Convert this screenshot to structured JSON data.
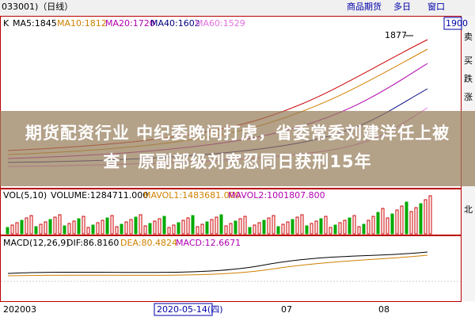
{
  "window": {
    "title": "033001)（日线）",
    "menu": [
      "商品期货",
      "多日",
      "窗口"
    ]
  },
  "price_panel": {
    "indicator": "K",
    "ma": [
      "MA5:1845",
      "MA10:1812",
      "MA20:1720",
      "MA40:1602",
      "MA60:1529"
    ],
    "high_label": "1877",
    "price_box": "1900"
  },
  "side_buttons": [
    "卖",
    "买",
    "跌",
    "涨",
    "北"
  ],
  "banner": {
    "text": "期货配资行业 中纪委晚间打虎，省委常委刘建洋任上被查！原副部级刘宽忍同日获刑15年"
  },
  "volume_panel": {
    "labels": [
      "VOL(5,10)",
      "VOLUME:1284711.000",
      "MAVOL1:1483681.000",
      "MAVOL2:1001807.800"
    ]
  },
  "macd_panel": {
    "labels": [
      "MACD(12,26,9)",
      "DIF:86.8160",
      "DEA:80.4824",
      "MACD:12.6671"
    ]
  },
  "x_axis": [
    "202003",
    "2020-05-14(四)",
    "07",
    "08"
  ]
}
